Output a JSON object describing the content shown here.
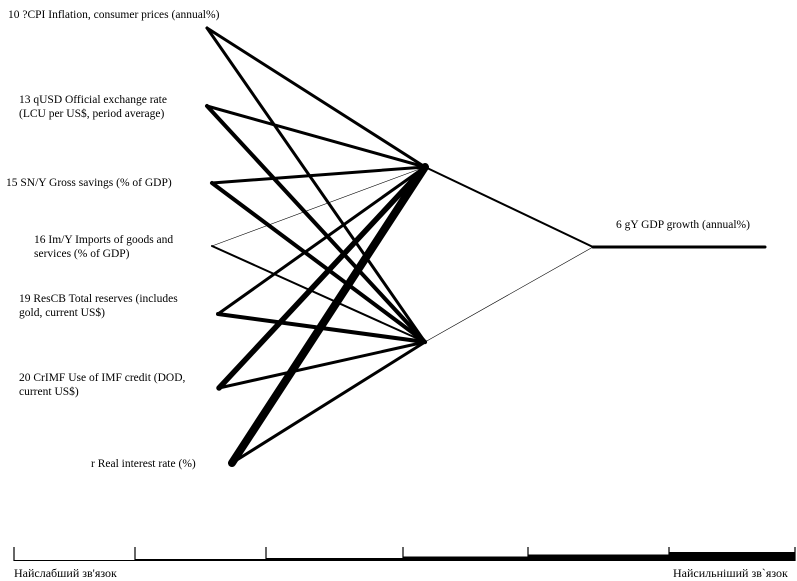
{
  "inputs": [
    {
      "id": "cpi",
      "line1": "10 ?CPI Inflation, consumer prices (annual%)",
      "line2": ""
    },
    {
      "id": "usd",
      "line1": "13 qUSD Official exchange rate",
      "line2": "(LCU per US$, period average)"
    },
    {
      "id": "sn",
      "line1": "15 SN/Y Gross savings (% of GDP)",
      "line2": ""
    },
    {
      "id": "im",
      "line1": "16 Im/Y Imports of goods and",
      "line2": "services (% of GDP)"
    },
    {
      "id": "rescb",
      "line1": "19 ResCB Total reserves (includes",
      "line2": "gold, current US$)"
    },
    {
      "id": "crimf",
      "line1": "20 CrIMF Use of IMF credit (DOD,",
      "line2": "current US$)"
    },
    {
      "id": "r",
      "line1": "r Real interest rate (%)",
      "line2": ""
    }
  ],
  "output": {
    "label": "6 gY GDP growth (annual%)"
  },
  "connection_strength_levels": [
    1,
    2,
    3,
    4,
    5,
    6
  ],
  "input_to_hidden": [
    {
      "from": "cpi",
      "to": "h1",
      "strength": 3
    },
    {
      "from": "cpi",
      "to": "h2",
      "strength": 3
    },
    {
      "from": "usd",
      "to": "h1",
      "strength": 3
    },
    {
      "from": "usd",
      "to": "h2",
      "strength": 4
    },
    {
      "from": "sn",
      "to": "h1",
      "strength": 3
    },
    {
      "from": "sn",
      "to": "h2",
      "strength": 4
    },
    {
      "from": "im",
      "to": "h1",
      "strength": 1
    },
    {
      "from": "im",
      "to": "h2",
      "strength": 2
    },
    {
      "from": "rescb",
      "to": "h1",
      "strength": 3
    },
    {
      "from": "rescb",
      "to": "h2",
      "strength": 4
    },
    {
      "from": "crimf",
      "to": "h1",
      "strength": 5
    },
    {
      "from": "crimf",
      "to": "h2",
      "strength": 3
    },
    {
      "from": "r",
      "to": "h1",
      "strength": 6
    },
    {
      "from": "r",
      "to": "h2",
      "strength": 3
    }
  ],
  "hidden_to_output": [
    {
      "from": "h1",
      "strength": 2
    },
    {
      "from": "h2",
      "strength": 1
    }
  ],
  "output_line_strength": 3,
  "scale": {
    "weakest_label": "Найслабший зв'язок",
    "strongest_label": "Найсильніший зв`язок"
  }
}
